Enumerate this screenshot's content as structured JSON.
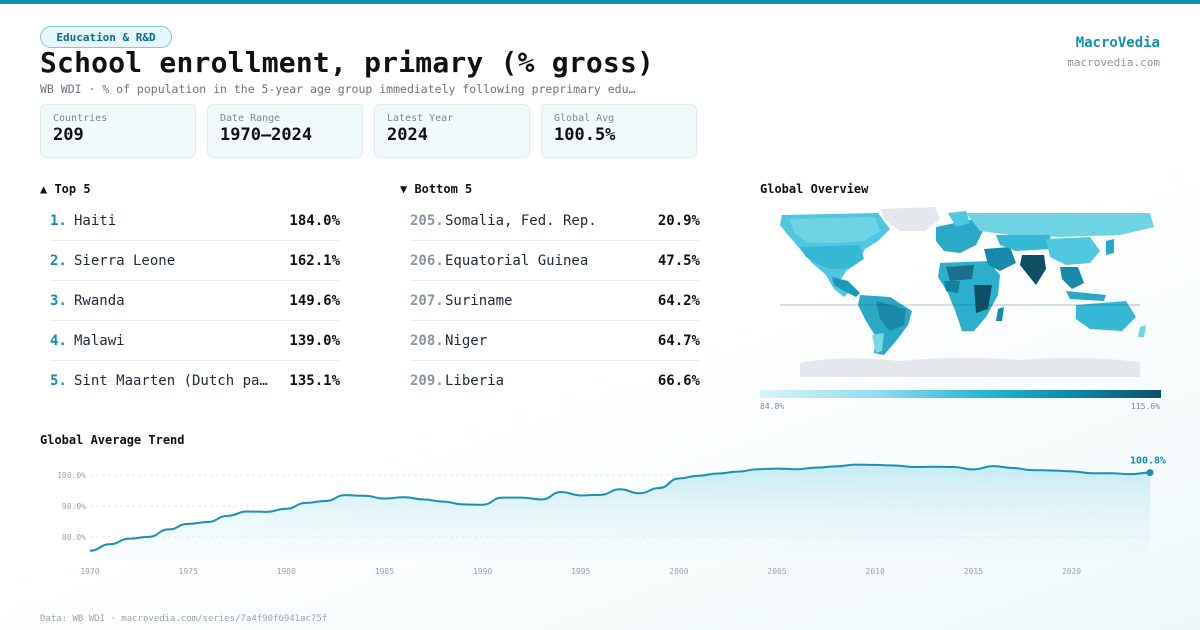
{
  "header": {
    "badge": "Education & R&D",
    "title": "School enrollment, primary (% gross)",
    "subtitle": "WB WDI · % of population in the 5-year age group immediately following preprimary edu…",
    "brand": "MacroVedia",
    "domain": "macrovedia.com"
  },
  "stats": [
    {
      "label": "Countries",
      "value": "209"
    },
    {
      "label": "Date Range",
      "value": "1970–2024"
    },
    {
      "label": "Latest Year",
      "value": "2024"
    },
    {
      "label": "Global Avg",
      "value": "100.5%"
    }
  ],
  "top5": {
    "title": "▲ Top 5",
    "items": [
      {
        "rank": "1.",
        "name": "Haiti",
        "value": "184.0%"
      },
      {
        "rank": "2.",
        "name": "Sierra Leone",
        "value": "162.1%"
      },
      {
        "rank": "3.",
        "name": "Rwanda",
        "value": "149.6%"
      },
      {
        "rank": "4.",
        "name": "Malawi",
        "value": "139.0%"
      },
      {
        "rank": "5.",
        "name": "Sint Maarten (Dutch pa…",
        "value": "135.1%"
      }
    ]
  },
  "bottom5": {
    "title": "▼ Bottom 5",
    "items": [
      {
        "rank": "205.",
        "name": "Somalia, Fed. Rep.",
        "value": "20.9%"
      },
      {
        "rank": "206.",
        "name": "Equatorial Guinea",
        "value": "47.5%"
      },
      {
        "rank": "207.",
        "name": "Suriname",
        "value": "64.2%"
      },
      {
        "rank": "208.",
        "name": "Niger",
        "value": "64.7%"
      },
      {
        "rank": "209.",
        "name": "Liberia",
        "value": "66.6%"
      }
    ]
  },
  "map": {
    "title": "Global Overview",
    "legend_min": "84.8%",
    "legend_max": "115.6%"
  },
  "trend": {
    "title": "Global Average Trend",
    "end_label": "100.8%"
  },
  "footer": "Data: WB WDI · macrovedia.com/series/7a4f90f6941ac75f",
  "colors": {
    "accent": "#0f8fb0",
    "line": "#1a8fb4",
    "area_top": "#bfe9f3",
    "map_dark": "#0e4f65",
    "map_light": "#d9f3f9"
  },
  "chart_data": {
    "type": "area",
    "title": "Global Average Trend",
    "xlabel": "",
    "ylabel": "",
    "x": [
      1970,
      1971,
      1972,
      1973,
      1974,
      1975,
      1976,
      1977,
      1978,
      1979,
      1980,
      1981,
      1982,
      1983,
      1984,
      1985,
      1986,
      1987,
      1988,
      1989,
      1990,
      1991,
      1992,
      1993,
      1994,
      1995,
      1996,
      1997,
      1998,
      1999,
      2000,
      2001,
      2002,
      2003,
      2004,
      2005,
      2006,
      2007,
      2008,
      2009,
      2010,
      2011,
      2012,
      2013,
      2014,
      2015,
      2016,
      2017,
      2018,
      2019,
      2020,
      2021,
      2022,
      2023,
      2024
    ],
    "series": [
      {
        "values": [
          75.5,
          77.6,
          79.4,
          80.0,
          82.4,
          84.2,
          84.8,
          86.8,
          88.2,
          88.1,
          89.1,
          91.0,
          91.6,
          93.5,
          93.3,
          92.4,
          92.8,
          92.1,
          91.4,
          90.5,
          90.4,
          92.7,
          92.7,
          92.1,
          94.5,
          93.4,
          93.6,
          95.4,
          94.1,
          95.8,
          98.9,
          99.8,
          100.5,
          101.1,
          101.9,
          102.1,
          101.9,
          102.4,
          102.8,
          103.4,
          103.3,
          103.1,
          102.6,
          102.7,
          102.6,
          101.8,
          102.9,
          102.3,
          101.6,
          101.5,
          101.2,
          100.6,
          100.6,
          100.3,
          100.8
        ]
      }
    ],
    "xticks": [
      1970,
      1975,
      1980,
      1985,
      1990,
      1995,
      2000,
      2005,
      2010,
      2015,
      2020
    ],
    "yticks": [
      80.0,
      90.0,
      100.0
    ],
    "ytick_labels": [
      "80.0%",
      "90.0%",
      "100.0%"
    ],
    "ylim": [
      72.5,
      106.5
    ],
    "xlim": [
      1970,
      2024
    ],
    "grid": true,
    "legend": "none"
  }
}
